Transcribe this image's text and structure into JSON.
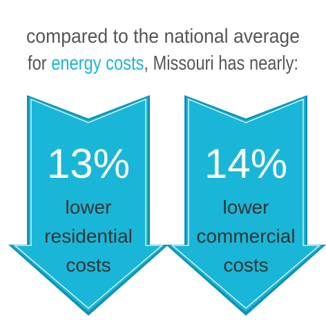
{
  "heading": {
    "line1": "compared to the national average",
    "line2_start": "for ",
    "line2_highlight": "energy costs",
    "line2_end": ", Missouri has nearly:"
  },
  "arrows": [
    {
      "figure": "13%",
      "lines": [
        "lower",
        "residential",
        "costs"
      ]
    },
    {
      "figure": "14%",
      "lines": [
        "lower",
        "commercial",
        "costs"
      ]
    }
  ]
}
